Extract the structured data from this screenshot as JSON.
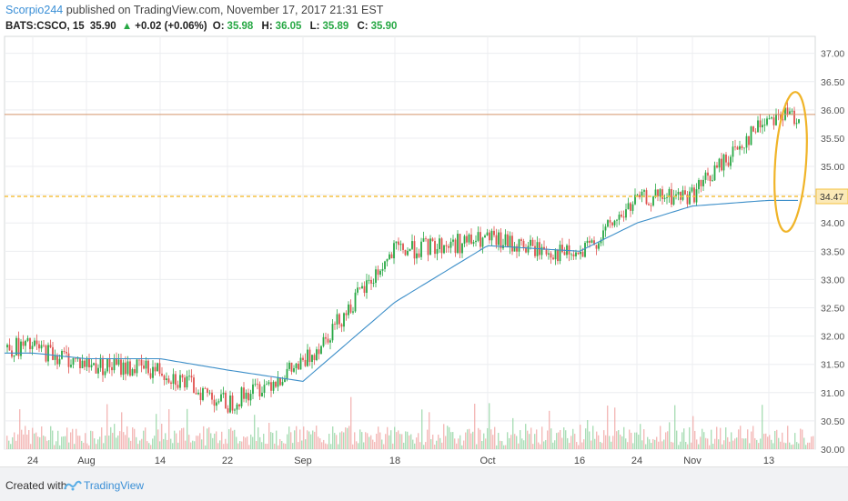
{
  "header": {
    "author": "Scorpio244",
    "published": "published on TradingView.com, November 17, 2017 21:31 EST"
  },
  "quote": {
    "symbol": "BATS:CSCO, 15",
    "last": "35.90",
    "change": "+0.02 (+0.06%)",
    "o_label": "O:",
    "o": "35.98",
    "h_label": "H:",
    "h": "36.05",
    "l_label": "L:",
    "l": "35.89",
    "c_label": "C:",
    "c": "35.90"
  },
  "footer": {
    "created": "Created with",
    "brand": "TradingView"
  },
  "colors": {
    "up": "#27a844",
    "down": "#e0524f",
    "ma": "#3d8fc9",
    "hline": "#d4956a",
    "dashed": "#f5c242",
    "ellipse": "#f0b428",
    "grid": "#eceef0"
  },
  "chart_data": {
    "type": "line",
    "title": "",
    "xlabel": "",
    "ylabel": "",
    "ylim": [
      30.0,
      37.3
    ],
    "y_ticks": [
      "37.00",
      "36.50",
      "36.00",
      "35.50",
      "35.00",
      "34.50",
      "34.00",
      "33.50",
      "33.00",
      "32.50",
      "32.00",
      "31.50",
      "31.00",
      "30.50",
      "30.00"
    ],
    "x_ticks": [
      "24",
      "Aug",
      "14",
      "22",
      "Sep",
      "18",
      "Oct",
      "16",
      "24",
      "Nov",
      "13"
    ],
    "price_marker": "34.47",
    "horizontal_line": 35.92,
    "dashed_level": 34.47,
    "series": [
      {
        "role": "price",
        "x": [
          "24",
          "Aug",
          "14",
          "22",
          "Sep",
          "18",
          "Oct",
          "16",
          "24",
          "Nov",
          "13"
        ],
        "values": [
          31.8,
          31.5,
          31.4,
          30.8,
          31.5,
          33.5,
          33.7,
          33.4,
          34.4,
          34.5,
          35.9
        ]
      },
      {
        "role": "moving-average",
        "x": [
          "24",
          "Aug",
          "14",
          "22",
          "Sep",
          "18",
          "Oct",
          "16",
          "24",
          "Nov",
          "13"
        ],
        "values": [
          31.7,
          31.6,
          31.6,
          31.4,
          31.2,
          32.6,
          33.6,
          33.5,
          34.0,
          34.3,
          34.4
        ]
      }
    ]
  }
}
